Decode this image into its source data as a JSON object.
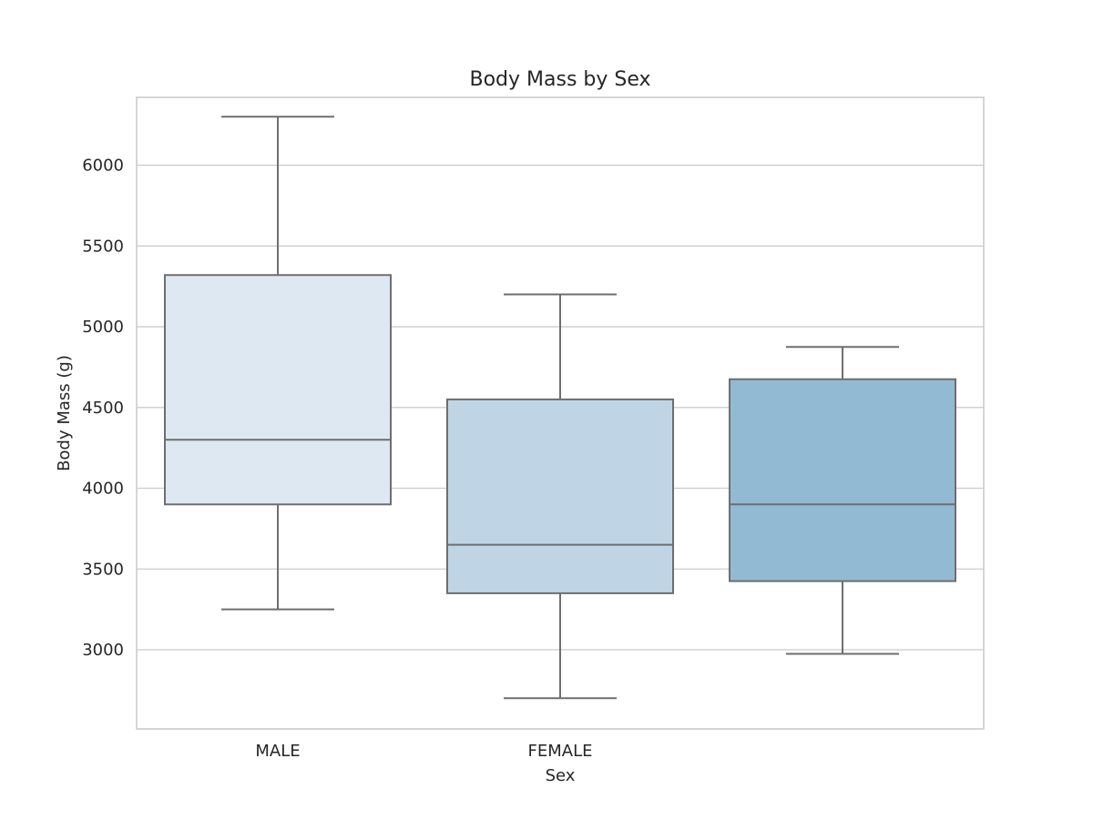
{
  "chart_data": {
    "type": "box",
    "title": "Body Mass by Sex",
    "xlabel": "Sex",
    "ylabel": "Body Mass (g)",
    "categories": [
      "MALE",
      "FEMALE",
      ""
    ],
    "boxes": [
      {
        "category": "MALE",
        "whisker_low": 3250,
        "q1": 3900,
        "median": 4300,
        "q3": 5320,
        "whisker_high": 6300,
        "color": "#dde8f3"
      },
      {
        "category": "FEMALE",
        "whisker_low": 2700,
        "q1": 3350,
        "median": 3650,
        "q3": 4550,
        "whisker_high": 5200,
        "color": "#bfd5e6"
      },
      {
        "category": "",
        "whisker_low": 2975,
        "q1": 3425,
        "median": 3900,
        "q3": 4675,
        "whisker_high": 4875,
        "color": "#92bbd3"
      }
    ],
    "yticks": [
      3000,
      3500,
      4000,
      4500,
      5000,
      5500,
      6000
    ],
    "ylim": [
      2510,
      6420
    ],
    "grid": true
  }
}
